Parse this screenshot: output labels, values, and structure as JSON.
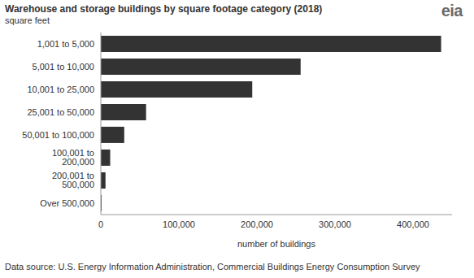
{
  "chart_data": {
    "type": "bar",
    "title": "Warehouse and storage buildings by square footage category (2018)",
    "subtitle": "square feet",
    "logo": "eia",
    "source": "Data source: U.S. Energy Information Administration, Commercial Buildings Energy Consumption Survey",
    "orientation": "horizontal",
    "categories": [
      "1,001 to 5,000",
      "5,001 to 10,000",
      "10,001 to 25,000",
      "25,001 to 50,000",
      "50,001 to 100,000",
      "100,001 to 200,000",
      "200,001 to 500,000",
      "Over 500,000"
    ],
    "values": [
      436000,
      256000,
      194000,
      58000,
      30000,
      12000,
      6000,
      1000
    ],
    "color": "#333333",
    "xlabel": "number of buildings",
    "xlim": [
      0,
      450000
    ],
    "xticks": [
      0,
      {
        "value": 100000,
        "label": "100,000"
      },
      {
        "value": 200000,
        "label": "200,000"
      },
      {
        "value": 300000,
        "label": "300,000"
      },
      {
        "value": 400000,
        "label": "400,000"
      }
    ],
    "grid": false
  }
}
